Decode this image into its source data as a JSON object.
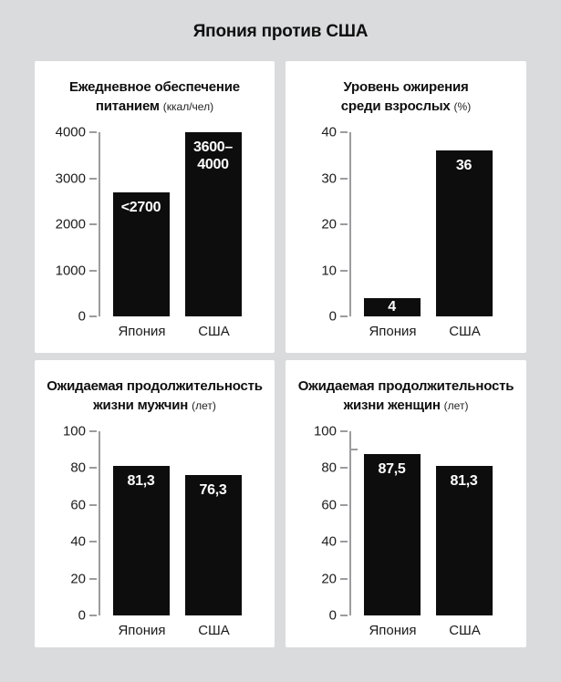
{
  "page_title": "Япония против США",
  "colors": {
    "background": "#d9dbdd",
    "panel": "#ffffff",
    "bar": "#0d0d0d",
    "axis": "#9b9c9e",
    "text": "#0f0f0f",
    "bar_label": "#ffffff"
  },
  "chart_data": [
    {
      "type": "bar",
      "title_line1": "Ежедневное обеспечение",
      "title_line2": "питанием",
      "unit": "(ккал/чел)",
      "categories": [
        "Япония",
        "США"
      ],
      "values": [
        2700,
        4000
      ],
      "bar_labels": [
        [
          "<2700"
        ],
        [
          "3600–",
          "4000"
        ]
      ],
      "ylim": [
        0,
        4000
      ],
      "yticks": [
        0,
        1000,
        2000,
        3000,
        4000
      ],
      "grid": false,
      "legend": false
    },
    {
      "type": "bar",
      "title_line1": "Уровень ожирения",
      "title_line2": "среди взрослых",
      "unit": "(%)",
      "categories": [
        "Япония",
        "США"
      ],
      "values": [
        4,
        36
      ],
      "bar_labels": [
        [
          "4"
        ],
        [
          "36"
        ]
      ],
      "ylim": [
        0,
        40
      ],
      "yticks": [
        0,
        10,
        20,
        30,
        40
      ],
      "grid": false,
      "legend": false
    },
    {
      "type": "bar",
      "title_line1": "Ожидаемая продолжительность",
      "title_line2": "жизни мужчин",
      "unit": "(лет)",
      "categories": [
        "Япония",
        "США"
      ],
      "values": [
        81.3,
        76.3
      ],
      "bar_labels": [
        [
          "81,3"
        ],
        [
          "76,3"
        ]
      ],
      "ylim": [
        0,
        100
      ],
      "yticks": [
        0,
        20,
        40,
        60,
        80,
        100
      ],
      "grid": false,
      "legend": false
    },
    {
      "type": "bar",
      "title_line1": "Ожидаемая продолжительность",
      "title_line2": "жизни женщин",
      "unit": "(лет)",
      "categories": [
        "Япония",
        "США"
      ],
      "values": [
        87.5,
        81.3
      ],
      "bar_labels": [
        [
          "87,5"
        ],
        [
          "81,3"
        ]
      ],
      "ylim": [
        0,
        100
      ],
      "yticks": [
        0,
        20,
        40,
        60,
        80,
        100
      ],
      "minor_tick": 90,
      "grid": false,
      "legend": false
    }
  ]
}
